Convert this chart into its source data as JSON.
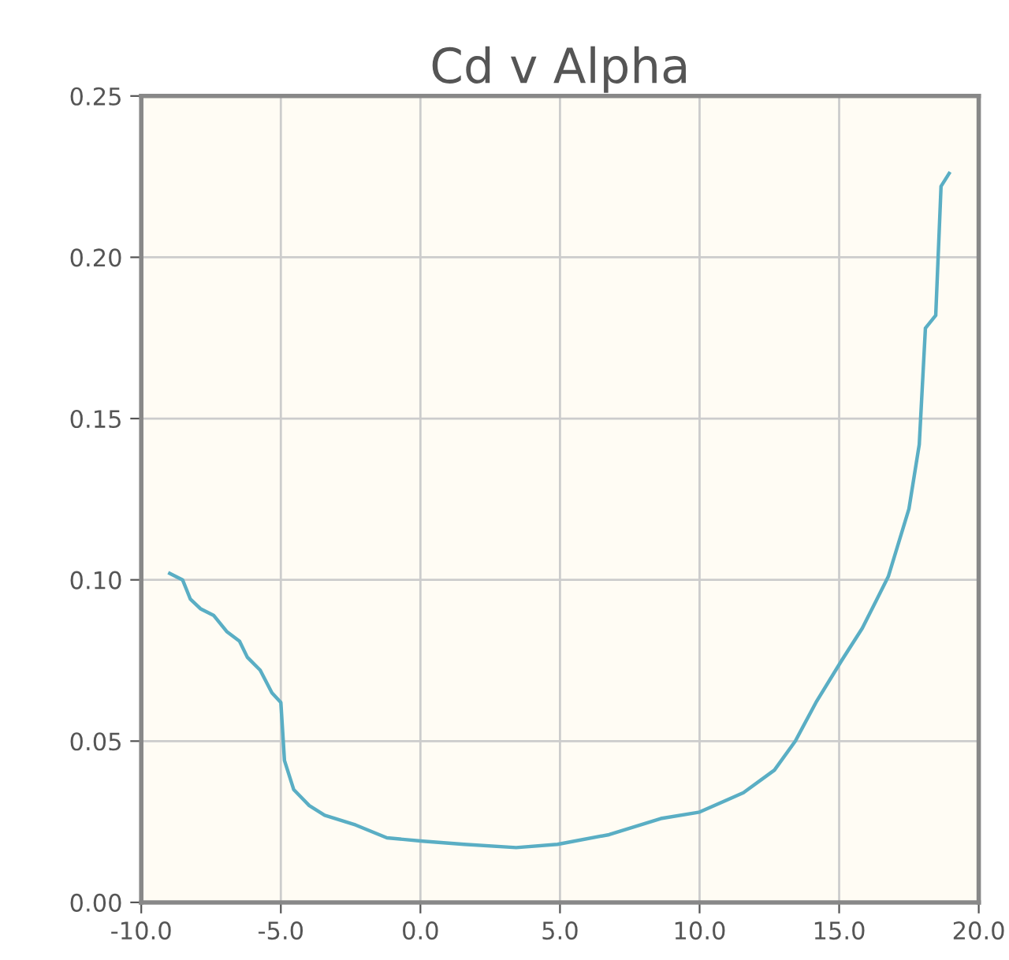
{
  "chart_data": {
    "type": "line",
    "title": "Cd v Alpha",
    "series": [
      {
        "color": "#5aaec4",
        "x": [
          -8.98,
          -8.52,
          -8.24,
          -7.87,
          -7.41,
          -6.94,
          -6.48,
          -6.2,
          -5.74,
          -5.32,
          -5.0,
          -4.87,
          -4.54,
          -3.98,
          -3.43,
          -2.32,
          -1.2,
          0.09,
          1.57,
          3.43,
          4.91,
          6.76,
          8.61,
          10.0,
          11.57,
          12.68,
          13.43,
          14.17,
          15.09,
          15.83,
          16.76,
          17.5,
          17.87,
          18.09,
          18.46,
          18.65,
          18.94
        ],
        "values": [
          0.102,
          0.1,
          0.094,
          0.091,
          0.089,
          0.084,
          0.081,
          0.076,
          0.072,
          0.065,
          0.062,
          0.044,
          0.035,
          0.03,
          0.027,
          0.024,
          0.02,
          0.019,
          0.018,
          0.017,
          0.018,
          0.021,
          0.026,
          0.028,
          0.034,
          0.041,
          0.05,
          0.062,
          0.075,
          0.085,
          0.101,
          0.122,
          0.142,
          0.178,
          0.182,
          0.222,
          0.226
        ]
      }
    ],
    "xlim": [
      -10,
      20
    ],
    "xticks": [
      {
        "value": -10,
        "label": "-10.0"
      },
      {
        "value": -5,
        "label": "-5.0"
      },
      {
        "value": 0,
        "label": "0.0"
      },
      {
        "value": 5,
        "label": "5.0"
      },
      {
        "value": 10,
        "label": "10.0"
      },
      {
        "value": 15,
        "label": "15.0"
      },
      {
        "value": 20,
        "label": "20.0"
      }
    ],
    "ylim": [
      0,
      0.25
    ],
    "yticks": [
      {
        "value": 0,
        "label": "0.00"
      },
      {
        "value": 0.05,
        "label": "0.05"
      },
      {
        "value": 0.1,
        "label": "0.10"
      },
      {
        "value": 0.15,
        "label": "0.15"
      },
      {
        "value": 0.2,
        "label": "0.20"
      },
      {
        "value": 0.25,
        "label": "0.25"
      }
    ],
    "grid": true,
    "marker": "none",
    "line_style": "solid"
  }
}
